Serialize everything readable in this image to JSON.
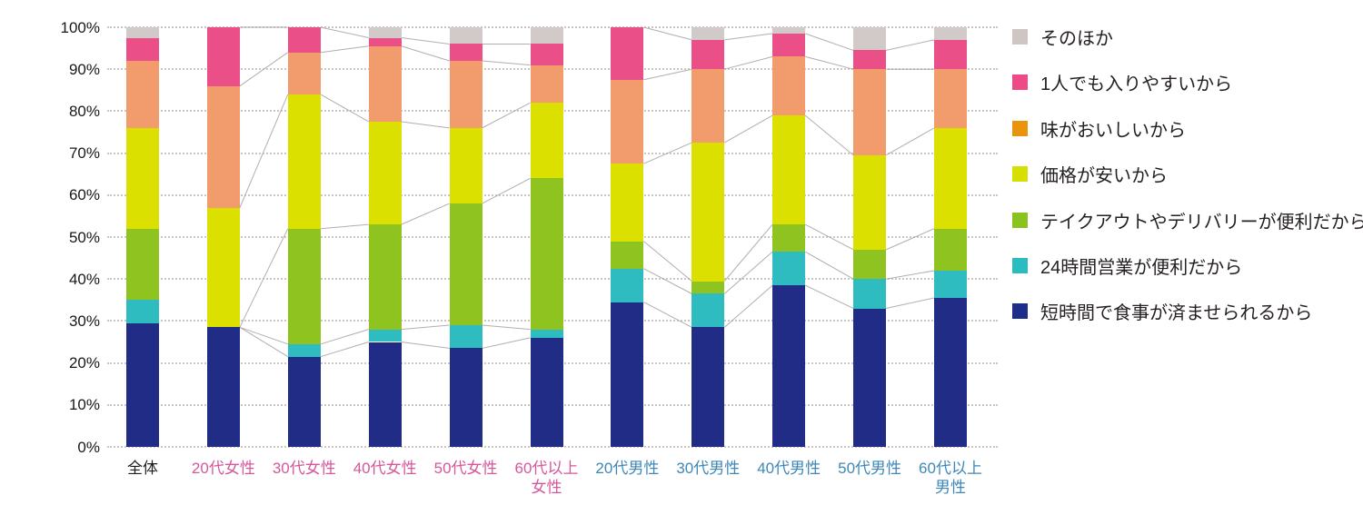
{
  "chart_data": {
    "type": "bar",
    "variant": "100-percent-stacked-column",
    "title": "",
    "xlabel": "",
    "ylabel": "",
    "ylim": [
      0,
      100
    ],
    "y_ticks": [
      "0%",
      "10%",
      "20%",
      "30%",
      "40%",
      "50%",
      "60%",
      "70%",
      "80%",
      "90%",
      "100%"
    ],
    "grid": "horizontal dotted lines every 10%",
    "legend_position": "right",
    "legend_order_top_to_bottom": [
      "そのほか",
      "1人でも入りやすいから",
      "味がおいしいから",
      "価格が安いから",
      "テイクアウトやデリバリーが便利だから",
      "24時間営業が便利だから",
      "短時間で食事が済ませられるから"
    ],
    "categories": [
      {
        "label": "全体",
        "lines": [
          "全体"
        ],
        "text_color": "#221d1d",
        "group": "overall"
      },
      {
        "label": "20代女性",
        "lines": [
          "20代女性"
        ],
        "text_color": "#d6579b",
        "group": "female"
      },
      {
        "label": "30代女性",
        "lines": [
          "30代女性"
        ],
        "text_color": "#d6579b",
        "group": "female"
      },
      {
        "label": "40代女性",
        "lines": [
          "40代女性"
        ],
        "text_color": "#d6579b",
        "group": "female"
      },
      {
        "label": "50代女性",
        "lines": [
          "50代女性"
        ],
        "text_color": "#d6579b",
        "group": "female"
      },
      {
        "label": "60代以上女性",
        "lines": [
          "60代以上",
          "女性"
        ],
        "text_color": "#d6579b",
        "group": "female"
      },
      {
        "label": "20代男性",
        "lines": [
          "20代男性"
        ],
        "text_color": "#3e87b8",
        "group": "male"
      },
      {
        "label": "30代男性",
        "lines": [
          "30代男性"
        ],
        "text_color": "#3e87b8",
        "group": "male"
      },
      {
        "label": "40代男性",
        "lines": [
          "40代男性"
        ],
        "text_color": "#3e87b8",
        "group": "male"
      },
      {
        "label": "50代男性",
        "lines": [
          "50代男性"
        ],
        "text_color": "#3e87b8",
        "group": "male"
      },
      {
        "label": "60代以上男性",
        "lines": [
          "60代以上",
          "男性"
        ],
        "text_color": "#3e87b8",
        "group": "male"
      }
    ],
    "series_bottom_to_top": [
      {
        "name": "短時間で食事が済ませられるから",
        "bar_color": "#212c87",
        "legend_color": "#1f2d8a",
        "values": [
          29.5,
          28.5,
          21.5,
          25,
          23.5,
          26,
          34.5,
          28.5,
          38.5,
          33,
          35.5
        ]
      },
      {
        "name": "24時間営業が便利だから",
        "bar_color": "#2ebcc0",
        "legend_color": "#2abcbf",
        "values": [
          5.5,
          0,
          3,
          3,
          5.5,
          2,
          8,
          8,
          8,
          7,
          6.5
        ]
      },
      {
        "name": "テイクアウトやデリバリーが便利だから",
        "bar_color": "#8ec320",
        "legend_color": "#8cc21e",
        "values": [
          17,
          0,
          27.5,
          25,
          29,
          36,
          6.5,
          3,
          6.5,
          7,
          10
        ]
      },
      {
        "name": "価格が安いから",
        "bar_color": "#dce000",
        "legend_color": "#d6e000",
        "values": [
          24,
          28.5,
          32,
          24.5,
          18,
          18,
          18.5,
          33,
          26,
          22.5,
          24
        ]
      },
      {
        "name": "味がおいしいから",
        "bar_color": "#f29b6c",
        "legend_color": "#e8940c",
        "values": [
          16,
          29,
          10,
          18,
          16,
          9,
          20,
          17.5,
          14,
          20.5,
          14
        ]
      },
      {
        "name": "1人でも入りやすいから",
        "bar_color": "#ea4f88",
        "legend_color": "#ee4a87",
        "values": [
          5.5,
          14,
          6,
          2,
          4,
          5,
          12.5,
          7,
          5.5,
          4.5,
          7
        ]
      },
      {
        "name": "そのほか",
        "bar_color": "#d2cac8",
        "legend_color": "#cdc6c3",
        "values": [
          2.5,
          0,
          0,
          2.5,
          4,
          4,
          0,
          3,
          1.5,
          5.5,
          3
        ]
      }
    ],
    "connectors": {
      "color": "#b2aeae",
      "within_groups": [
        [
          1,
          2,
          3,
          4,
          5
        ],
        [
          6,
          7,
          8,
          9,
          10
        ]
      ],
      "description": "thin lines linking cumulative segment boundaries between adjacent bars inside each gender group; the overall bar is not connected"
    }
  }
}
